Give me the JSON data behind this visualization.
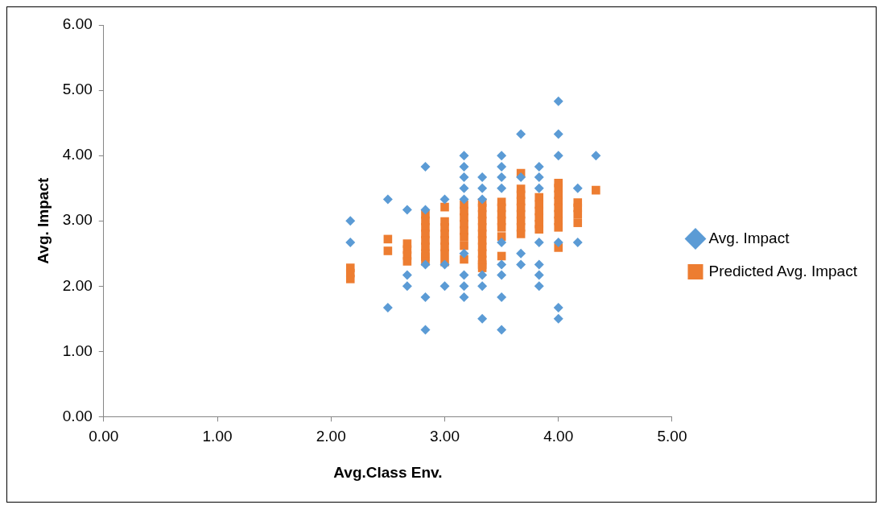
{
  "chart_data": {
    "type": "scatter",
    "xlabel": "Avg.Class Env.",
    "ylabel": "Avg. Impact",
    "grid": false,
    "legend": "right",
    "xlim": [
      0,
      5
    ],
    "xticks": [
      {
        "value": 0,
        "label": "0.00"
      },
      {
        "value": 1,
        "label": "1.00"
      },
      {
        "value": 2,
        "label": "2.00"
      },
      {
        "value": 3,
        "label": "3.00"
      },
      {
        "value": 4,
        "label": "4.00"
      },
      {
        "value": 5,
        "label": "5.00"
      }
    ],
    "ylim": [
      0,
      6
    ],
    "yticks": [
      {
        "value": 0,
        "label": "0.00"
      },
      {
        "value": 1,
        "label": "1.00"
      },
      {
        "value": 2,
        "label": "2.00"
      },
      {
        "value": 3,
        "label": "3.00"
      },
      {
        "value": 4,
        "label": "4.00"
      },
      {
        "value": 5,
        "label": "5.00"
      },
      {
        "value": 6,
        "label": "6.00"
      }
    ],
    "series": [
      {
        "name": "Avg. Impact",
        "color": "#5b9bd5",
        "marker": "diamond",
        "x": [
          2.17,
          2.17,
          2.5,
          2.5,
          2.67,
          2.67,
          2.67,
          2.83,
          2.83,
          2.83,
          2.83,
          2.83,
          3.0,
          3.0,
          3.0,
          3.17,
          3.17,
          3.17,
          3.17,
          3.17,
          3.17,
          3.17,
          3.17,
          3.17,
          3.33,
          3.33,
          3.33,
          3.33,
          3.33,
          3.33,
          3.5,
          3.5,
          3.5,
          3.5,
          3.5,
          3.5,
          3.5,
          3.5,
          3.5,
          3.67,
          3.67,
          3.67,
          3.67,
          3.83,
          3.83,
          3.83,
          3.83,
          3.83,
          3.83,
          3.83,
          4.0,
          4.0,
          4.0,
          4.0,
          4.0,
          4.0,
          4.17,
          4.17,
          4.33
        ],
        "values": [
          3.0,
          2.67,
          3.33,
          1.67,
          3.17,
          2.17,
          2.0,
          3.83,
          3.17,
          2.33,
          1.83,
          1.33,
          3.33,
          2.33,
          2.0,
          4.0,
          3.83,
          3.67,
          3.5,
          3.33,
          2.5,
          2.17,
          2.0,
          1.83,
          3.67,
          3.5,
          3.33,
          2.17,
          2.0,
          1.5,
          4.0,
          3.83,
          3.67,
          3.5,
          2.67,
          2.33,
          2.17,
          1.83,
          1.33,
          4.33,
          3.67,
          2.5,
          2.33,
          3.83,
          3.67,
          3.5,
          2.67,
          2.33,
          2.17,
          2.0,
          4.83,
          4.33,
          4.0,
          2.67,
          1.67,
          1.5,
          3.5,
          2.67,
          4.0
        ]
      },
      {
        "name": "Predicted Avg. Impact",
        "color": "#ed7d31",
        "marker": "square",
        "x": [
          2.17,
          2.17,
          2.17,
          2.5,
          2.5,
          2.67,
          2.67,
          2.67,
          2.67,
          2.83,
          2.83,
          2.83,
          2.83,
          2.83,
          2.83,
          2.83,
          2.83,
          2.83,
          3.0,
          3.0,
          3.0,
          3.0,
          3.0,
          3.0,
          3.0,
          3.0,
          3.17,
          3.17,
          3.17,
          3.17,
          3.17,
          3.17,
          3.17,
          3.17,
          3.33,
          3.33,
          3.33,
          3.33,
          3.33,
          3.33,
          3.33,
          3.33,
          3.33,
          3.33,
          3.33,
          3.33,
          3.5,
          3.5,
          3.5,
          3.5,
          3.5,
          3.5,
          3.5,
          3.67,
          3.67,
          3.67,
          3.67,
          3.67,
          3.67,
          3.67,
          3.67,
          3.67,
          3.83,
          3.83,
          3.83,
          3.83,
          3.83,
          3.83,
          4.0,
          4.0,
          4.0,
          4.0,
          4.0,
          4.0,
          4.0,
          4.0,
          4.0,
          4.17,
          4.17,
          4.17,
          4.17,
          4.33
        ],
        "values": [
          2.28,
          2.2,
          2.11,
          2.72,
          2.54,
          2.65,
          2.56,
          2.47,
          2.38,
          3.1,
          3.0,
          2.9,
          2.8,
          2.7,
          2.6,
          2.5,
          2.45,
          2.38,
          3.21,
          2.99,
          2.9,
          2.8,
          2.7,
          2.6,
          2.5,
          2.37,
          3.25,
          3.15,
          3.05,
          2.95,
          2.85,
          2.75,
          2.62,
          2.41,
          3.28,
          3.2,
          3.1,
          3.0,
          2.9,
          2.8,
          2.7,
          2.6,
          2.5,
          2.4,
          2.33,
          2.28,
          3.29,
          3.2,
          3.1,
          3.0,
          2.9,
          2.76,
          2.46,
          3.73,
          3.49,
          3.4,
          3.3,
          3.2,
          3.1,
          3.0,
          2.9,
          2.8,
          3.36,
          3.25,
          3.15,
          3.05,
          2.95,
          2.87,
          3.58,
          3.5,
          3.4,
          3.3,
          3.2,
          3.1,
          3.0,
          2.9,
          2.59,
          3.28,
          3.2,
          3.1,
          2.97,
          3.47
        ]
      }
    ]
  }
}
